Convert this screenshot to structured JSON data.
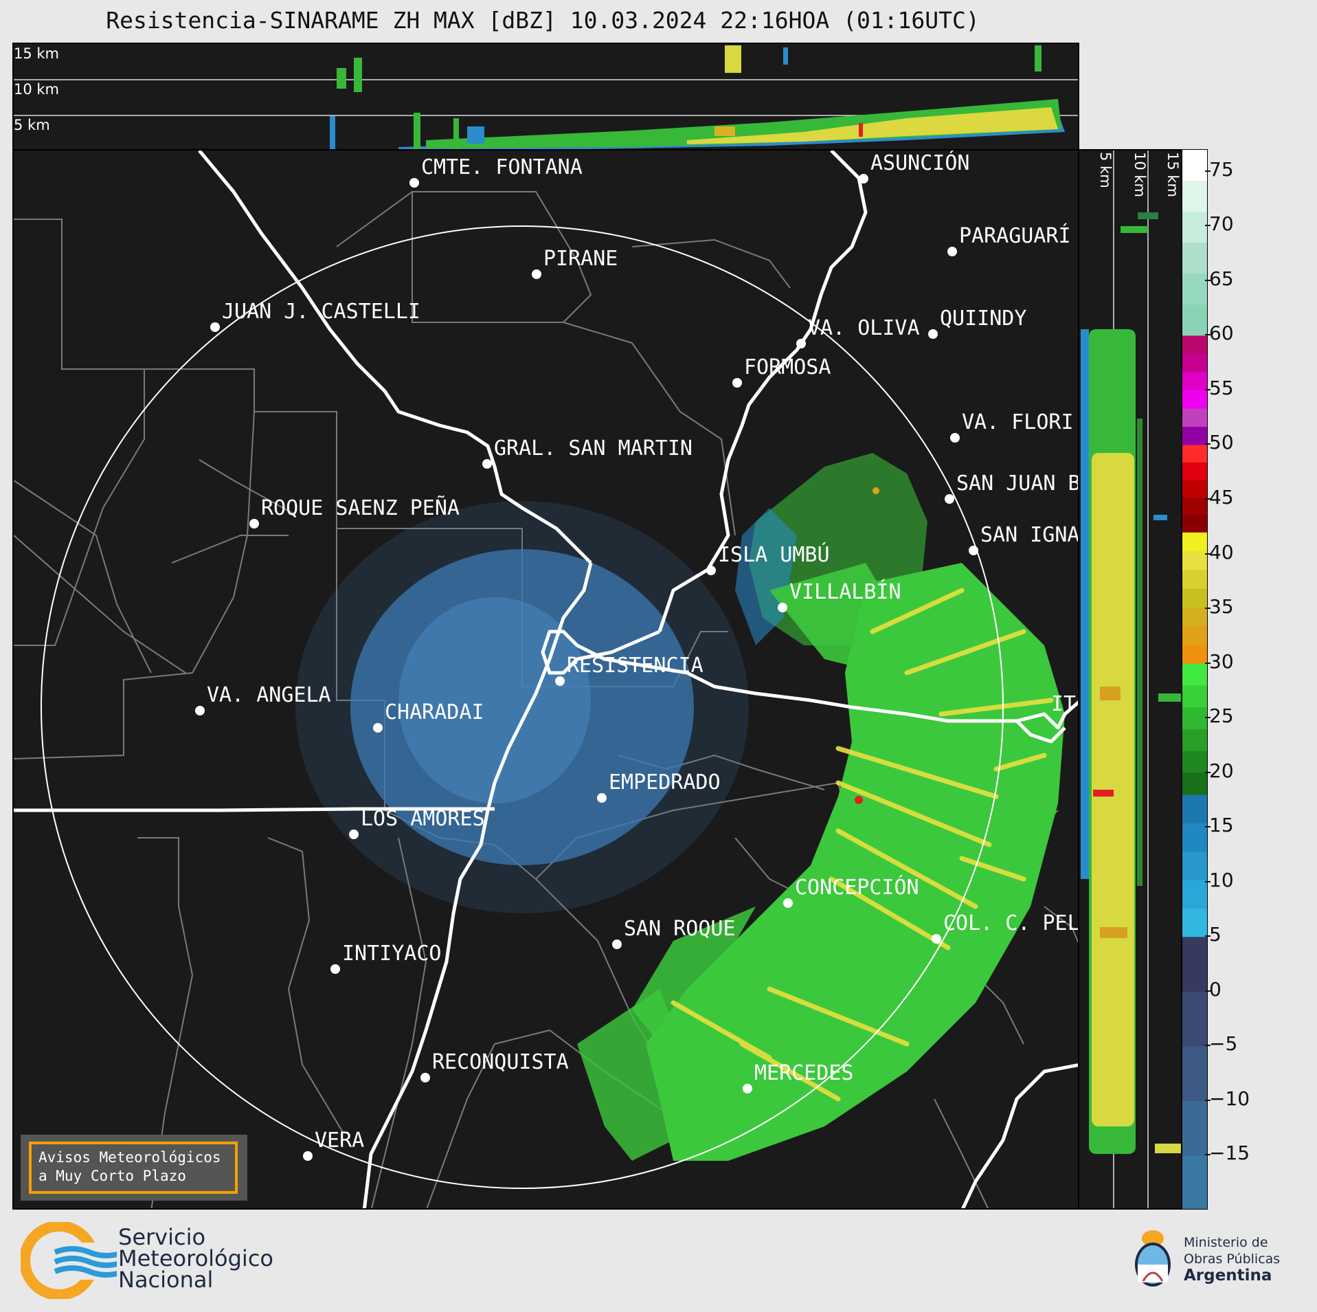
{
  "header": {
    "title": "Resistencia-SINARAME ZH MAX [dBZ] 10.03.2024 22:16HOA (01:16UTC)"
  },
  "top_panel": {
    "levels": [
      "15 km",
      "10 km",
      "5 km"
    ]
  },
  "side_panel": {
    "levels": [
      "5 km",
      "10 km",
      "15 km"
    ]
  },
  "cities": [
    {
      "name": "CMTE. FONTANA"
    },
    {
      "name": "ASUNCIÓN"
    },
    {
      "name": "PARAGUARÍ"
    },
    {
      "name": "PIRANE"
    },
    {
      "name": "JUAN J. CASTELLI"
    },
    {
      "name": "VA. OLIVA"
    },
    {
      "name": "QUIINDY"
    },
    {
      "name": "FORMOSA"
    },
    {
      "name": "VA. FLORI"
    },
    {
      "name": "GRAL. SAN MARTIN"
    },
    {
      "name": "SAN JUAN B"
    },
    {
      "name": "ROQUE SAENZ PEÑA"
    },
    {
      "name": "SAN IGNA"
    },
    {
      "name": "ISLA UMBÚ"
    },
    {
      "name": "VILLALBÍN"
    },
    {
      "name": "RESISTENCIA"
    },
    {
      "name": "VA. ANGELA"
    },
    {
      "name": "CHARADAI"
    },
    {
      "name": "EMPEDRADO"
    },
    {
      "name": "LOS AMORES"
    },
    {
      "name": "CONCEPCIÓN"
    },
    {
      "name": "SAN ROQUE"
    },
    {
      "name": "COL. C. PEL"
    },
    {
      "name": "INTIYACO"
    },
    {
      "name": "RECONQUISTA"
    },
    {
      "name": "MERCEDES"
    },
    {
      "name": "VERA"
    },
    {
      "name": "IT"
    }
  ],
  "colorbar": {
    "unit": "dBZ",
    "ticks": [
      "75",
      "70",
      "65",
      "60",
      "55",
      "50",
      "45",
      "40",
      "35",
      "30",
      "25",
      "20",
      "15",
      "10",
      "5",
      "0",
      "−5",
      "−10",
      "−15"
    ],
    "bands": [
      {
        "from": 60,
        "to": 77,
        "colors": [
          "#ffffff",
          "#dff5ea",
          "#c6ecdc",
          "#addfcb",
          "#96d9be",
          "#88d4b5"
        ]
      },
      {
        "from": 50,
        "to": 60,
        "colors": [
          "#b8086e",
          "#c60090",
          "#e000c8",
          "#f000f0",
          "#c040c0",
          "#9400a8"
        ]
      },
      {
        "from": 42,
        "to": 50,
        "colors": [
          "#ff2a2a",
          "#e00010",
          "#c00000",
          "#a00000",
          "#8a0000"
        ]
      },
      {
        "from": 30,
        "to": 42,
        "colors": [
          "#f0f020",
          "#e8e040",
          "#d8d030",
          "#c8c020",
          "#d4b020",
          "#e0a018",
          "#f09010"
        ]
      },
      {
        "from": 18,
        "to": 30,
        "colors": [
          "#40e840",
          "#38d038",
          "#30b830",
          "#28a028",
          "#208820",
          "#187018"
        ]
      },
      {
        "from": 5,
        "to": 18,
        "colors": [
          "#1e78b0",
          "#2088c0",
          "#2898cc",
          "#28a8d8",
          "#30b8e0"
        ]
      },
      {
        "from": -20,
        "to": 5,
        "colors": [
          "#353a5e",
          "#3a4a72",
          "#3c5a84",
          "#3c6a96",
          "#3a78a4"
        ]
      }
    ]
  },
  "colors": {
    "background": "#1a1a1a",
    "reflectivity_weak": "#3c7ab4",
    "reflectivity_moderate": "#3cc83c",
    "reflectivity_strong": "#e8e040",
    "reflectivity_very_strong": "#e02020"
  },
  "notice": {
    "line1": "Avisos Meteorológicos",
    "line2": "a Muy Corto Plazo"
  },
  "footer": {
    "smn": {
      "line1": "Servicio",
      "line2": "Meteorológico",
      "line3": "Nacional"
    },
    "ministry": {
      "line1": "Ministerio de",
      "line2": "Obras Públicas",
      "line3": "Argentina"
    }
  }
}
